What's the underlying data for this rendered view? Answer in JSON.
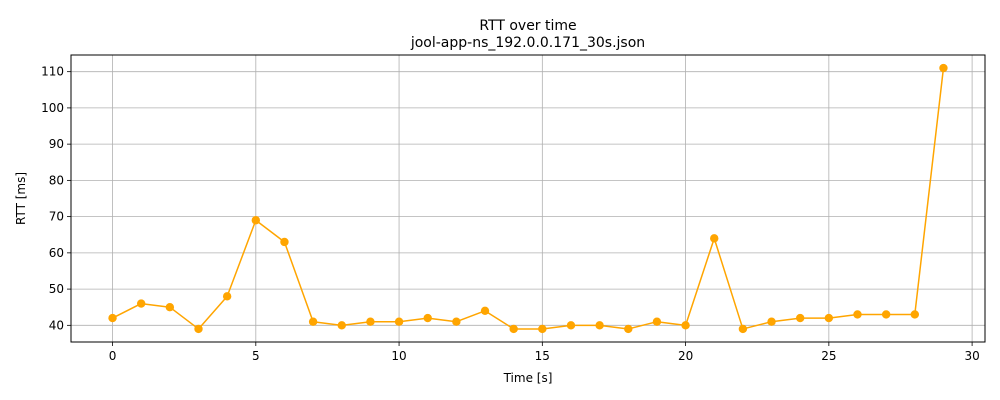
{
  "chart_data": {
    "type": "line",
    "title": "RTT over time",
    "subtitle": "jool-app-ns_192.0.0.171_30s.json",
    "xlabel": "Time [s]",
    "ylabel": "RTT [ms]",
    "xlim": [
      -1.45,
      30.45
    ],
    "ylim": [
      35.4,
      114.6
    ],
    "xticks": [
      0,
      5,
      10,
      15,
      20,
      25,
      30
    ],
    "yticks": [
      40,
      50,
      60,
      70,
      80,
      90,
      100,
      110
    ],
    "grid": true,
    "series": [
      {
        "color": "#ffa500",
        "marker": "circle",
        "x": [
          0,
          1,
          2,
          3,
          4,
          5,
          6,
          7,
          8,
          9,
          10,
          11,
          12,
          13,
          14,
          15,
          16,
          17,
          18,
          19,
          20,
          21,
          22,
          23,
          24,
          25,
          26,
          27,
          28,
          29
        ],
        "values": [
          42,
          46,
          45,
          39,
          48,
          69,
          63,
          41,
          40,
          41,
          41,
          42,
          41,
          44,
          39,
          39,
          40,
          40,
          39,
          41,
          40,
          64,
          39,
          41,
          42,
          42,
          43,
          43,
          43,
          111
        ]
      }
    ]
  }
}
